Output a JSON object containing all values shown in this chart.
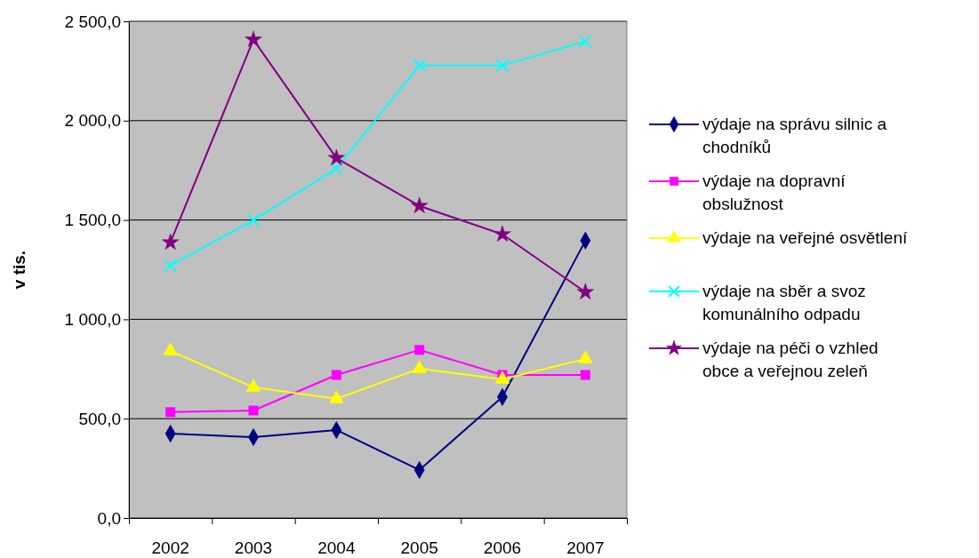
{
  "chart_data": {
    "type": "line",
    "ylabel": "v tis.",
    "categories": [
      "2002",
      "2003",
      "2004",
      "2005",
      "2006",
      "2007"
    ],
    "ylim": [
      0,
      2500
    ],
    "yticks": [
      {
        "value": 0,
        "label": "0,0"
      },
      {
        "value": 500,
        "label": "500,0"
      },
      {
        "value": 1000,
        "label": "1 000,0"
      },
      {
        "value": 1500,
        "label": "1 500,0"
      },
      {
        "value": 2000,
        "label": "2 000,0"
      },
      {
        "value": 2500,
        "label": "2 500,0"
      }
    ],
    "grid": "y",
    "legend": "right",
    "series": [
      {
        "name": "výdaje na správu silnic a chodníků",
        "color": "#000080",
        "marker": "diamond",
        "values": [
          425,
          407,
          443,
          242,
          609,
          1396
        ]
      },
      {
        "name": "výdaje na dopravní obslužnost",
        "color": "#ff00ff",
        "marker": "square",
        "values": [
          533,
          541,
          720,
          846,
          720,
          720
        ]
      },
      {
        "name": "výdaje na veřejné osvětlení",
        "color": "#ffff00",
        "marker": "triangle",
        "values": [
          841,
          658,
          600,
          752,
          698,
          801
        ]
      },
      {
        "name": "výdaje na sběr a svoz komunálního odpadu",
        "color": "#00ffff",
        "marker": "cross",
        "values": [
          1271,
          1499,
          1759,
          2278,
          2278,
          2399
        ]
      },
      {
        "name": "výdaje na péči o vzhled obce a veřejnou zeleň",
        "color": "#800080",
        "marker": "star",
        "values": [
          1387,
          2408,
          1812,
          1571,
          1428,
          1137
        ]
      }
    ]
  }
}
